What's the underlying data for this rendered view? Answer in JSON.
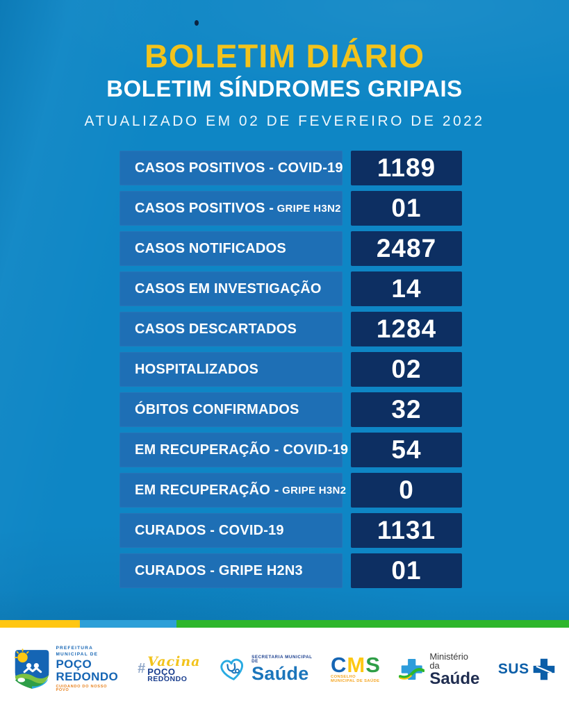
{
  "header": {
    "title": "BOLETIM DIÁRIO",
    "subtitle": "BOLETIM SÍNDROMES GRIPAIS",
    "updated": "ATUALIZADO EM 02 DE FEVEREIRO DE 2022"
  },
  "stats": [
    {
      "label": "CASOS POSITIVOS - COVID-19",
      "label_small": "",
      "value": "1189"
    },
    {
      "label": "CASOS POSITIVOS - ",
      "label_small": "GRIPE H3N2",
      "value": "01"
    },
    {
      "label": "CASOS NOTIFICADOS",
      "label_small": "",
      "value": "2487"
    },
    {
      "label": "CASOS EM INVESTIGAÇÃO",
      "label_small": "",
      "value": "14"
    },
    {
      "label": "CASOS DESCARTADOS",
      "label_small": "",
      "value": "1284"
    },
    {
      "label": "HOSPITALIZADOS",
      "label_small": "",
      "value": "02"
    },
    {
      "label": "ÓBITOS CONFIRMADOS",
      "label_small": "",
      "value": "32"
    },
    {
      "label": "EM RECUPERAÇÃO - COVID-19",
      "label_small": "",
      "value": "54"
    },
    {
      "label": "EM RECUPERAÇÃO - ",
      "label_small": "GRIPE H3N2",
      "value": "0"
    },
    {
      "label": "CURADOS - COVID-19",
      "label_small": "",
      "value": "1131"
    },
    {
      "label": "CURADOS - GRIPE H2N3",
      "label_small": "",
      "value": "01"
    }
  ],
  "footer": {
    "prefeitura": {
      "dept_line1": "PREFEITURA",
      "dept_line2": "MUNICIPAL DE",
      "name1": "POÇO",
      "name2": "REDONDO",
      "slogan": "CUIDANDO DO NOSSO POVO"
    },
    "vacina": {
      "script": "Vacina",
      "name1": "POÇO",
      "name2": "REDONDO"
    },
    "secretaria": {
      "small": "SECRETARIA MUNICIPAL DE",
      "big": "Saúde"
    },
    "cms": {
      "c": "C",
      "m": "M",
      "s": "S",
      "small": "CONSELHO MUNICIPAL DE SAÚDE"
    },
    "ministerio": {
      "small": "Ministério da",
      "big": "Saúde"
    },
    "sus": {
      "text": "SUS"
    }
  },
  "colors": {
    "background": "#0e86c5",
    "row_label": "#1e6fb5",
    "row_value": "#0d2f62",
    "accent_yellow": "#f2c31c",
    "stripe_yellow": "#ffc612",
    "stripe_blue": "#2d9fd8",
    "stripe_green": "#2eb62c",
    "text_white": "#ffffff"
  }
}
